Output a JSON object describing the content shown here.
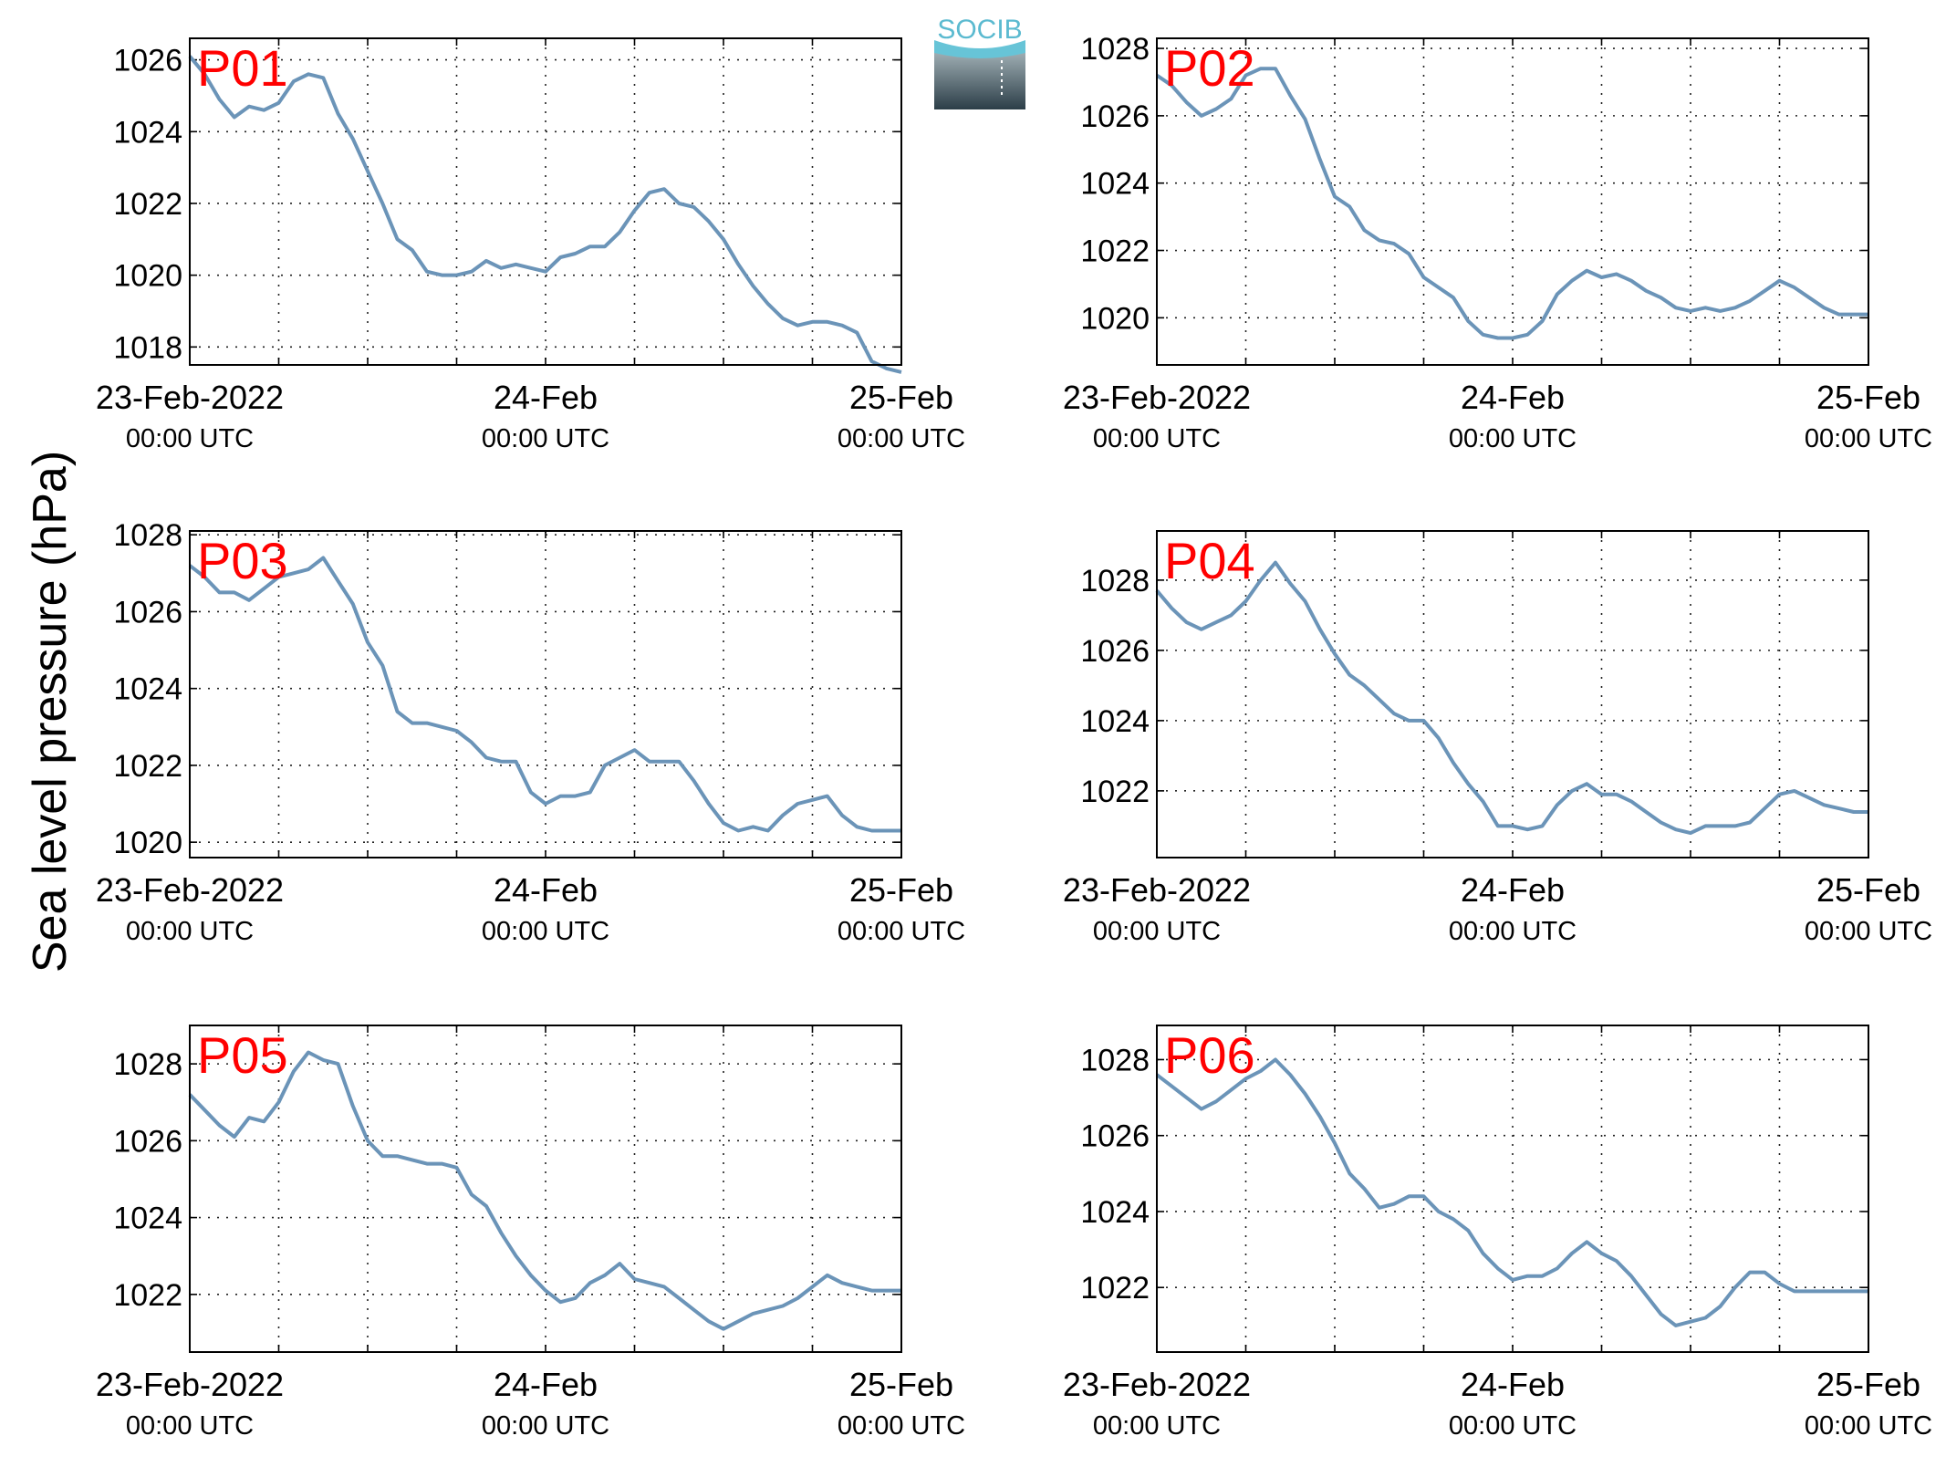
{
  "figure": {
    "ylabel": "Sea level pressure (hPa)",
    "logo_text": "SOCIB",
    "line_color": "#6b94b8",
    "station_label_color": "#ff0000"
  },
  "chart_data": [
    {
      "type": "line",
      "station": "P01",
      "xlabels": [
        [
          "23-Feb-2022",
          "00:00 UTC"
        ],
        [
          "24-Feb",
          "00:00 UTC"
        ],
        [
          "25-Feb",
          "00:00 UTC"
        ]
      ],
      "xlim": [
        0,
        48
      ],
      "ylim": [
        1017.5,
        1026.6
      ],
      "yticks": [
        1018,
        1020,
        1022,
        1024,
        1026
      ],
      "grid": true,
      "x": [
        0,
        1,
        2,
        3,
        4,
        5,
        6,
        7,
        8,
        9,
        10,
        11,
        12,
        13,
        14,
        15,
        16,
        17,
        18,
        19,
        20,
        21,
        22,
        23,
        24,
        25,
        26,
        27,
        28,
        29,
        30,
        31,
        32,
        33,
        34,
        35,
        36,
        37,
        38,
        39,
        40,
        41,
        42,
        43,
        44,
        45,
        46,
        47,
        48
      ],
      "values": [
        1026.1,
        1025.6,
        1024.9,
        1024.4,
        1024.7,
        1024.6,
        1024.8,
        1025.4,
        1025.6,
        1025.5,
        1024.5,
        1023.8,
        1022.9,
        1022.0,
        1021.0,
        1020.7,
        1020.1,
        1020.0,
        1020.0,
        1020.1,
        1020.4,
        1020.2,
        1020.3,
        1020.2,
        1020.1,
        1020.5,
        1020.6,
        1020.8,
        1020.8,
        1021.2,
        1021.8,
        1022.3,
        1022.4,
        1022.0,
        1021.9,
        1021.5,
        1021.0,
        1020.3,
        1019.7,
        1019.2,
        1018.8,
        1018.6,
        1018.7,
        1018.7,
        1018.6,
        1018.4,
        1017.6,
        1017.4,
        1017.3
      ]
    },
    {
      "type": "line",
      "station": "P02",
      "xlabels": [
        [
          "23-Feb-2022",
          "00:00 UTC"
        ],
        [
          "24-Feb",
          "00:00 UTC"
        ],
        [
          "25-Feb",
          "00:00 UTC"
        ]
      ],
      "xlim": [
        0,
        48
      ],
      "ylim": [
        1018.6,
        1028.3
      ],
      "yticks": [
        1020,
        1022,
        1024,
        1026,
        1028
      ],
      "grid": true,
      "x": [
        0,
        1,
        2,
        3,
        4,
        5,
        6,
        7,
        8,
        9,
        10,
        11,
        12,
        13,
        14,
        15,
        16,
        17,
        18,
        19,
        20,
        21,
        22,
        23,
        24,
        25,
        26,
        27,
        28,
        29,
        30,
        31,
        32,
        33,
        34,
        35,
        36,
        37,
        38,
        39,
        40,
        41,
        42,
        43,
        44,
        45,
        46,
        47,
        48
      ],
      "values": [
        1027.2,
        1026.9,
        1026.4,
        1026.0,
        1026.2,
        1026.5,
        1027.2,
        1027.4,
        1027.4,
        1026.6,
        1025.9,
        1024.7,
        1023.6,
        1023.3,
        1022.6,
        1022.3,
        1022.2,
        1021.9,
        1021.2,
        1020.9,
        1020.6,
        1019.9,
        1019.5,
        1019.4,
        1019.4,
        1019.5,
        1019.9,
        1020.7,
        1021.1,
        1021.4,
        1021.2,
        1021.3,
        1021.1,
        1020.8,
        1020.6,
        1020.3,
        1020.2,
        1020.3,
        1020.2,
        1020.3,
        1020.5,
        1020.8,
        1021.1,
        1020.9,
        1020.6,
        1020.3,
        1020.1,
        1020.1,
        1020.1
      ]
    },
    {
      "type": "line",
      "station": "P03",
      "xlabels": [
        [
          "23-Feb-2022",
          "00:00 UTC"
        ],
        [
          "24-Feb",
          "00:00 UTC"
        ],
        [
          "25-Feb",
          "00:00 UTC"
        ]
      ],
      "xlim": [
        0,
        48
      ],
      "ylim": [
        1019.6,
        1028.1
      ],
      "yticks": [
        1020,
        1022,
        1024,
        1026,
        1028
      ],
      "grid": true,
      "x": [
        0,
        1,
        2,
        3,
        4,
        5,
        6,
        7,
        8,
        9,
        10,
        11,
        12,
        13,
        14,
        15,
        16,
        17,
        18,
        19,
        20,
        21,
        22,
        23,
        24,
        25,
        26,
        27,
        28,
        29,
        30,
        31,
        32,
        33,
        34,
        35,
        36,
        37,
        38,
        39,
        40,
        41,
        42,
        43,
        44,
        45,
        46,
        47,
        48
      ],
      "values": [
        1027.2,
        1026.9,
        1026.5,
        1026.5,
        1026.3,
        1026.6,
        1026.9,
        1027.0,
        1027.1,
        1027.4,
        1026.8,
        1026.2,
        1025.2,
        1024.6,
        1023.4,
        1023.1,
        1023.1,
        1023.0,
        1022.9,
        1022.6,
        1022.2,
        1022.1,
        1022.1,
        1021.3,
        1021.0,
        1021.2,
        1021.2,
        1021.3,
        1022.0,
        1022.2,
        1022.4,
        1022.1,
        1022.1,
        1022.1,
        1021.6,
        1021.0,
        1020.5,
        1020.3,
        1020.4,
        1020.3,
        1020.7,
        1021.0,
        1021.1,
        1021.2,
        1020.7,
        1020.4,
        1020.3,
        1020.3,
        1020.3
      ]
    },
    {
      "type": "line",
      "station": "P04",
      "xlabels": [
        [
          "23-Feb-2022",
          "00:00 UTC"
        ],
        [
          "24-Feb",
          "00:00 UTC"
        ],
        [
          "25-Feb",
          "00:00 UTC"
        ]
      ],
      "xlim": [
        0,
        48
      ],
      "ylim": [
        1020.1,
        1029.4
      ],
      "yticks": [
        1022,
        1024,
        1026,
        1028
      ],
      "grid": true,
      "x": [
        0,
        1,
        2,
        3,
        4,
        5,
        6,
        7,
        8,
        9,
        10,
        11,
        12,
        13,
        14,
        15,
        16,
        17,
        18,
        19,
        20,
        21,
        22,
        23,
        24,
        25,
        26,
        27,
        28,
        29,
        30,
        31,
        32,
        33,
        34,
        35,
        36,
        37,
        38,
        39,
        40,
        41,
        42,
        43,
        44,
        45,
        46,
        47,
        48
      ],
      "values": [
        1027.7,
        1027.2,
        1026.8,
        1026.6,
        1026.8,
        1027.0,
        1027.4,
        1028.0,
        1028.5,
        1027.9,
        1027.4,
        1026.6,
        1025.9,
        1025.3,
        1025.0,
        1024.6,
        1024.2,
        1024.0,
        1024.0,
        1023.5,
        1022.8,
        1022.2,
        1021.7,
        1021.0,
        1021.0,
        1020.9,
        1021.0,
        1021.6,
        1022.0,
        1022.2,
        1021.9,
        1021.9,
        1021.7,
        1021.4,
        1021.1,
        1020.9,
        1020.8,
        1021.0,
        1021.0,
        1021.0,
        1021.1,
        1021.5,
        1021.9,
        1022.0,
        1021.8,
        1021.6,
        1021.5,
        1021.4,
        1021.4
      ]
    },
    {
      "type": "line",
      "station": "P05",
      "xlabels": [
        [
          "23-Feb-2022",
          "00:00 UTC"
        ],
        [
          "24-Feb",
          "00:00 UTC"
        ],
        [
          "25-Feb",
          "00:00 UTC"
        ]
      ],
      "xlim": [
        0,
        48
      ],
      "ylim": [
        1020.5,
        1029.0
      ],
      "yticks": [
        1022,
        1024,
        1026,
        1028
      ],
      "grid": true,
      "x": [
        0,
        1,
        2,
        3,
        4,
        5,
        6,
        7,
        8,
        9,
        10,
        11,
        12,
        13,
        14,
        15,
        16,
        17,
        18,
        19,
        20,
        21,
        22,
        23,
        24,
        25,
        26,
        27,
        28,
        29,
        30,
        31,
        32,
        33,
        34,
        35,
        36,
        37,
        38,
        39,
        40,
        41,
        42,
        43,
        44,
        45,
        46,
        47,
        48
      ],
      "values": [
        1027.2,
        1026.8,
        1026.4,
        1026.1,
        1026.6,
        1026.5,
        1027.0,
        1027.8,
        1028.3,
        1028.1,
        1028.0,
        1026.9,
        1026.0,
        1025.6,
        1025.6,
        1025.5,
        1025.4,
        1025.4,
        1025.3,
        1024.6,
        1024.3,
        1023.6,
        1023.0,
        1022.5,
        1022.1,
        1021.8,
        1021.9,
        1022.3,
        1022.5,
        1022.8,
        1022.4,
        1022.3,
        1022.2,
        1021.9,
        1021.6,
        1021.3,
        1021.1,
        1021.3,
        1021.5,
        1021.6,
        1021.7,
        1021.9,
        1022.2,
        1022.5,
        1022.3,
        1022.2,
        1022.1,
        1022.1,
        1022.1
      ]
    },
    {
      "type": "line",
      "station": "P06",
      "xlabels": [
        [
          "23-Feb-2022",
          "00:00 UTC"
        ],
        [
          "24-Feb",
          "00:00 UTC"
        ],
        [
          "25-Feb",
          "00:00 UTC"
        ]
      ],
      "xlim": [
        0,
        48
      ],
      "ylim": [
        1020.3,
        1028.9
      ],
      "yticks": [
        1022,
        1024,
        1026,
        1028
      ],
      "grid": true,
      "x": [
        0,
        1,
        2,
        3,
        4,
        5,
        6,
        7,
        8,
        9,
        10,
        11,
        12,
        13,
        14,
        15,
        16,
        17,
        18,
        19,
        20,
        21,
        22,
        23,
        24,
        25,
        26,
        27,
        28,
        29,
        30,
        31,
        32,
        33,
        34,
        35,
        36,
        37,
        38,
        39,
        40,
        41,
        42,
        43,
        44,
        45,
        46,
        47,
        48
      ],
      "values": [
        1027.6,
        1027.3,
        1027.0,
        1026.7,
        1026.9,
        1027.2,
        1027.5,
        1027.7,
        1028.0,
        1027.6,
        1027.1,
        1026.5,
        1025.8,
        1025.0,
        1024.6,
        1024.1,
        1024.2,
        1024.4,
        1024.4,
        1024.0,
        1023.8,
        1023.5,
        1022.9,
        1022.5,
        1022.2,
        1022.3,
        1022.3,
        1022.5,
        1022.9,
        1023.2,
        1022.9,
        1022.7,
        1022.3,
        1021.8,
        1021.3,
        1021.0,
        1021.1,
        1021.2,
        1021.5,
        1022.0,
        1022.4,
        1022.4,
        1022.1,
        1021.9,
        1021.9,
        1021.9,
        1021.9,
        1021.9,
        1021.9
      ]
    }
  ]
}
